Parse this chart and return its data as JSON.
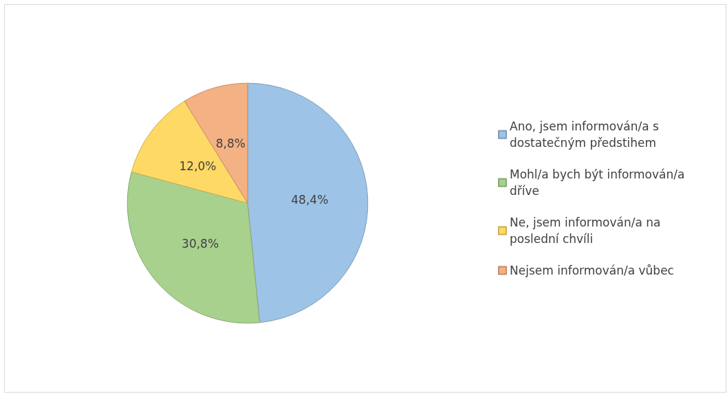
{
  "chart_data": {
    "type": "pie",
    "categories": [
      "Ano, jsem informován/a s dostatečným předstihem",
      "Mohl/a bych být informován/a dříve",
      "Ne, jsem informován/a na poslední chvíli",
      "Nejsem informován/a vůbec"
    ],
    "values": [
      48.4,
      30.8,
      12.0,
      8.8
    ],
    "colors": [
      "#9dc3e6",
      "#a9d18e",
      "#ffd966",
      "#f4b183"
    ],
    "value_labels": [
      "48,4%",
      "30,8%",
      "12,0%",
      "8,8%"
    ],
    "legend": "right"
  }
}
